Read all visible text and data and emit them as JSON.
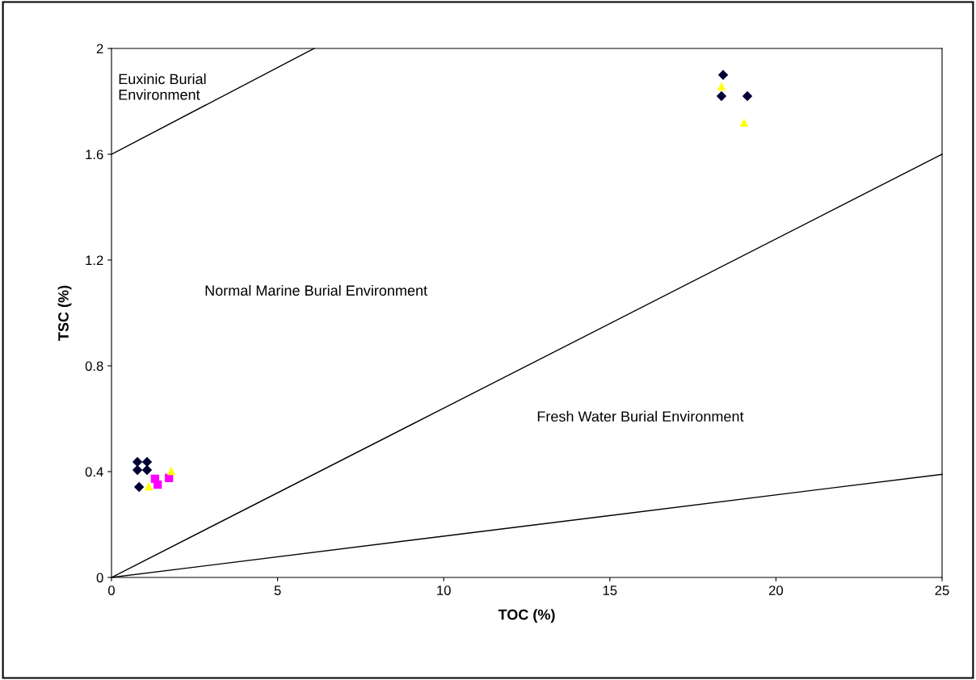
{
  "chart_data": {
    "type": "scatter",
    "xlabel": "TOC (%)",
    "ylabel": "TSC (%)",
    "xlim": [
      0,
      25
    ],
    "ylim": [
      0,
      2
    ],
    "xticks": [
      0,
      5,
      10,
      15,
      20,
      25
    ],
    "yticks": [
      0,
      0.4,
      0.8,
      1.2,
      1.6,
      2
    ],
    "grid": false,
    "series": [
      {
        "type": "line",
        "color": "#000000",
        "marker": "none",
        "x": [
          0,
          6.1
        ],
        "values": [
          1.6,
          2
        ]
      },
      {
        "type": "line",
        "color": "#000000",
        "marker": "none",
        "x": [
          0,
          25
        ],
        "values": [
          0,
          1.6
        ]
      },
      {
        "type": "line",
        "color": "#000000",
        "marker": "none",
        "x": [
          0,
          25
        ],
        "values": [
          0,
          0.39
        ]
      },
      {
        "type": "scatter",
        "color": "#000033",
        "marker": "diamond",
        "x": [
          0.78,
          1.07,
          0.78,
          1.07,
          0.83,
          18.41,
          18.36,
          19.14
        ],
        "values": [
          0.437,
          0.437,
          0.406,
          0.406,
          0.342,
          1.9,
          1.82,
          1.82
        ]
      },
      {
        "type": "scatter",
        "color": "#ff00ff",
        "marker": "square",
        "x": [
          1.31,
          1.39,
          1.73
        ],
        "values": [
          0.373,
          0.351,
          0.376
        ]
      },
      {
        "type": "scatter",
        "color": "#ffff00",
        "marker": "triangle",
        "x": [
          1.12,
          1.8,
          18.36,
          19.04
        ],
        "values": [
          0.345,
          0.403,
          1.857,
          1.72
        ]
      }
    ],
    "annotations": [
      "Euxinic Burial\nEnvironment",
      "Normal Marine Burial Environment",
      "Fresh Water Burial Environment"
    ]
  }
}
